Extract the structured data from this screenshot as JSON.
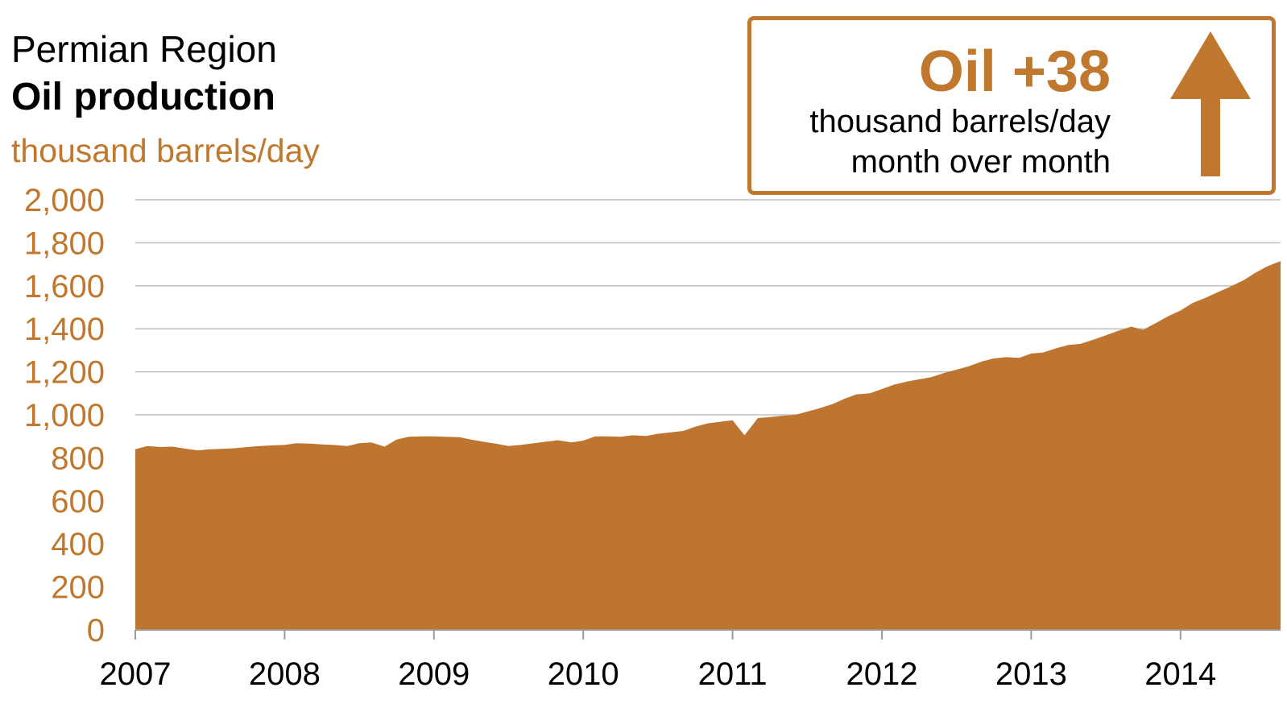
{
  "header": {
    "region": "Permian Region",
    "title": "Oil production",
    "unit": "thousand barrels/day"
  },
  "callout": {
    "headline": "Oil +38",
    "line1": "thousand barrels/day",
    "line2": "month over month",
    "arrow_icon": "arrow-up-icon",
    "color": "#C0782E"
  },
  "chart_data": {
    "type": "area",
    "title": "Oil production",
    "ylabel": "thousand barrels/day",
    "xlabel": "",
    "ylim": [
      0,
      2000
    ],
    "yticks": [
      0,
      200,
      400,
      600,
      800,
      1000,
      1200,
      1400,
      1600,
      1800,
      2000
    ],
    "ytick_labels": [
      "0",
      "200",
      "400",
      "600",
      "800",
      "1,000",
      "1,200",
      "1,400",
      "1,600",
      "1,800",
      "2,000"
    ],
    "xticks": [
      2007,
      2008,
      2009,
      2010,
      2011,
      2012,
      2013,
      2014
    ],
    "xtick_labels": [
      "2007",
      "2008",
      "2009",
      "2010",
      "2011",
      "2012",
      "2013",
      "2014"
    ],
    "xlim": [
      2007,
      2014.67
    ],
    "grid": "horizontal",
    "fill_color": "#BD7530",
    "axis_label_color": "#C0782E",
    "series": [
      {
        "x": [
          2007.0,
          2007.08,
          2007.17,
          2007.25,
          2007.33,
          2007.42,
          2007.5,
          2007.58,
          2007.67,
          2007.75,
          2007.83,
          2007.92,
          2008.0,
          2008.08,
          2008.17,
          2008.25,
          2008.33,
          2008.42,
          2008.5,
          2008.58,
          2008.67,
          2008.75,
          2008.83,
          2008.92,
          2009.0,
          2009.08,
          2009.17,
          2009.25,
          2009.33,
          2009.42,
          2009.5,
          2009.58,
          2009.67,
          2009.75,
          2009.83,
          2009.92,
          2010.0,
          2010.08,
          2010.17,
          2010.25,
          2010.33,
          2010.42,
          2010.5,
          2010.58,
          2010.67,
          2010.75,
          2010.83,
          2010.92,
          2011.0,
          2011.08,
          2011.17,
          2011.25,
          2011.33,
          2011.42,
          2011.5,
          2011.58,
          2011.67,
          2011.75,
          2011.83,
          2011.92,
          2012.0,
          2012.08,
          2012.17,
          2012.25,
          2012.33,
          2012.42,
          2012.5,
          2012.58,
          2012.67,
          2012.75,
          2012.83,
          2012.92,
          2013.0,
          2013.08,
          2013.17,
          2013.25,
          2013.33,
          2013.42,
          2013.5,
          2013.58,
          2013.67,
          2013.75,
          2013.83,
          2013.92,
          2014.0,
          2014.08,
          2014.17,
          2014.25,
          2014.33,
          2014.42,
          2014.5,
          2014.58,
          2014.67
        ],
        "values": [
          840,
          855,
          850,
          852,
          843,
          835,
          840,
          842,
          845,
          850,
          855,
          858,
          860,
          868,
          866,
          862,
          860,
          855,
          868,
          872,
          852,
          885,
          898,
          900,
          900,
          898,
          896,
          885,
          875,
          865,
          855,
          860,
          868,
          875,
          882,
          872,
          880,
          900,
          900,
          898,
          905,
          902,
          912,
          918,
          925,
          945,
          960,
          968,
          975,
          905,
          985,
          990,
          995,
          1000,
          1015,
          1030,
          1050,
          1075,
          1095,
          1100,
          1120,
          1140,
          1155,
          1165,
          1175,
          1195,
          1210,
          1225,
          1248,
          1262,
          1268,
          1265,
          1285,
          1290,
          1310,
          1325,
          1330,
          1350,
          1370,
          1390,
          1410,
          1395,
          1425,
          1460,
          1485,
          1520,
          1545,
          1570,
          1595,
          1625,
          1660,
          1690,
          1715
        ]
      }
    ]
  }
}
